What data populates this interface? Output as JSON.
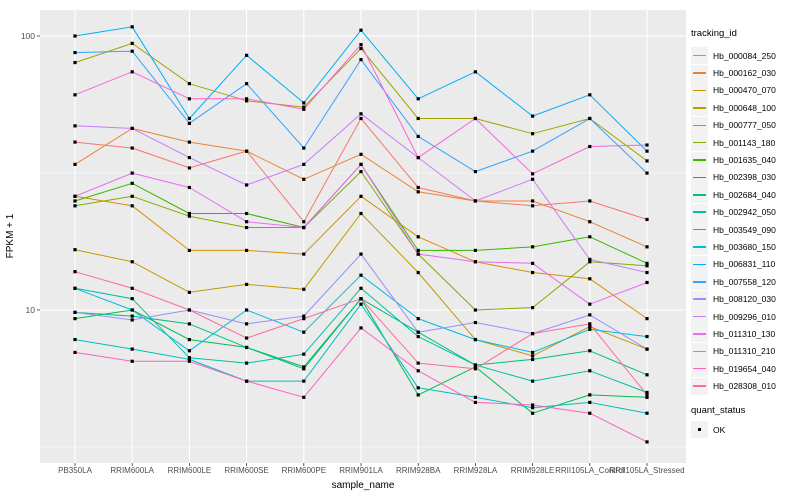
{
  "legend": {
    "title": "tracking_id"
  },
  "legend2": {
    "title": "quant_status",
    "items": [
      "OK"
    ]
  },
  "colors": {
    "panel_bg": "#EBEBEB",
    "grid": "#FFFFFF",
    "tick_label": "#4D4D4D",
    "axis_title": "#000000",
    "legend_key_bg": "#F2F2F2",
    "point": "#000000"
  },
  "chart_data": {
    "type": "line",
    "title": "",
    "xlabel": "sample_name",
    "ylabel": "FPKM + 1",
    "y_scale": "log10",
    "ylim": [
      2.8,
      124
    ],
    "grid": true,
    "legend_position": "right",
    "point_shape": "square",
    "yticks": [
      {
        "label": "100",
        "value": 100
      },
      {
        "label": "10",
        "value": 10
      }
    ],
    "y_minor": [
      31.62,
      3.162
    ],
    "categories": [
      "PB350LA",
      "RRIM600LA",
      "RRIM600LE",
      "RRIM600SE",
      "RRIM600PE",
      "RRIM901LA",
      "RRIM928BA",
      "RRIM928LA",
      "RRIM928LE",
      "RRII105LA_Control",
      "RRII105LA_Stressed"
    ],
    "series": [
      {
        "name": "Hb_000084_250",
        "color": "#F8766D",
        "values": [
          41,
          39,
          33,
          38,
          21,
          50,
          28,
          25,
          24,
          25,
          21.4
        ]
      },
      {
        "name": "Hb_000162_030",
        "color": "#EA8331",
        "values": [
          34,
          46,
          41,
          38,
          30,
          37,
          27,
          25,
          25,
          21,
          17
        ]
      },
      {
        "name": "Hb_000470_070",
        "color": "#D89000",
        "values": [
          26,
          24,
          16.5,
          16.5,
          16,
          26,
          18.5,
          15,
          13.7,
          13,
          9.3
        ]
      },
      {
        "name": "Hb_000648_100",
        "color": "#C09B00",
        "values": [
          16.6,
          15,
          11.6,
          12.4,
          11.9,
          22.5,
          13.7,
          7.8,
          6.8,
          8.7,
          7.2
        ]
      },
      {
        "name": "Hb_000777_050",
        "color": "#A3A500",
        "values": [
          80,
          94,
          67,
          58,
          55,
          90,
          50,
          50,
          44,
          50,
          35
        ]
      },
      {
        "name": "Hb_001143_180",
        "color": "#7CAE00",
        "values": [
          24,
          26,
          22,
          20,
          20,
          32,
          16,
          10,
          10.2,
          15,
          14.5
        ]
      },
      {
        "name": "Hb_001635_040",
        "color": "#39B600",
        "values": [
          25,
          29,
          22.5,
          22.5,
          20,
          34,
          16.5,
          16.5,
          17,
          18.5,
          14.8
        ]
      },
      {
        "name": "Hb_002398_030",
        "color": "#00BB4E",
        "values": [
          9.3,
          10,
          7.8,
          7.3,
          6.2,
          11,
          4.9,
          6.2,
          4.2,
          4.9,
          4.8
        ]
      },
      {
        "name": "Hb_002684_040",
        "color": "#00BF7D",
        "values": [
          9.8,
          9.5,
          8.9,
          7.3,
          6.1,
          11,
          8.3,
          6.3,
          6.6,
          7.1,
          5.8
        ]
      },
      {
        "name": "Hb_002942_050",
        "color": "#00C1A3",
        "values": [
          12,
          11,
          6.7,
          6.4,
          6.9,
          12,
          8,
          6.3,
          5.5,
          6,
          5
        ]
      },
      {
        "name": "Hb_003549_090",
        "color": "#00BFC4",
        "values": [
          7.8,
          7.2,
          6.6,
          5.5,
          5.5,
          10.5,
          5.2,
          4.8,
          4.4,
          4.6,
          4.2
        ]
      },
      {
        "name": "Hb_003680_150",
        "color": "#00BAE0",
        "values": [
          12,
          10,
          7.1,
          10,
          8.3,
          13.4,
          9.3,
          7.8,
          7,
          8.5,
          8
        ]
      },
      {
        "name": "Hb_006831_110",
        "color": "#00B0F6",
        "values": [
          100,
          108,
          50,
          85,
          57,
          105,
          59,
          74,
          51,
          61,
          38
        ]
      },
      {
        "name": "Hb_007558_120",
        "color": "#35A2FF",
        "values": [
          87,
          88,
          48,
          67,
          39,
          82,
          43,
          32,
          38,
          50,
          31.6
        ]
      },
      {
        "name": "Hb_008120_030",
        "color": "#9590FF",
        "values": [
          9.8,
          9.2,
          10,
          8.9,
          9.5,
          16,
          8.3,
          9,
          8.2,
          9.6,
          7.2
        ]
      },
      {
        "name": "Hb_009296_010",
        "color": "#C77CFF",
        "values": [
          47,
          46,
          36,
          28.6,
          34,
          52,
          36,
          25,
          30,
          15.3,
          13.7
        ]
      },
      {
        "name": "Hb_011310_130",
        "color": "#E76BF3",
        "values": [
          26,
          31.6,
          28,
          21,
          20,
          34,
          16,
          15,
          14.8,
          10.5,
          12.6
        ]
      },
      {
        "name": "Hb_011310_210",
        "color": "#FA62DB",
        "values": [
          61,
          74,
          59,
          59,
          54,
          93,
          36,
          50,
          31.4,
          39.5,
          40
        ]
      },
      {
        "name": "Hb_019654_040",
        "color": "#FF62BC",
        "values": [
          7.0,
          6.5,
          6.5,
          5.5,
          4.8,
          8.6,
          6.0,
          4.6,
          4.5,
          4.2,
          3.3
        ]
      },
      {
        "name": "Hb_028308_010",
        "color": "#FF6A98",
        "values": [
          13.8,
          12,
          10,
          7.9,
          9.3,
          11,
          6.4,
          6.1,
          8.2,
          8.9,
          4.9
        ]
      }
    ]
  }
}
